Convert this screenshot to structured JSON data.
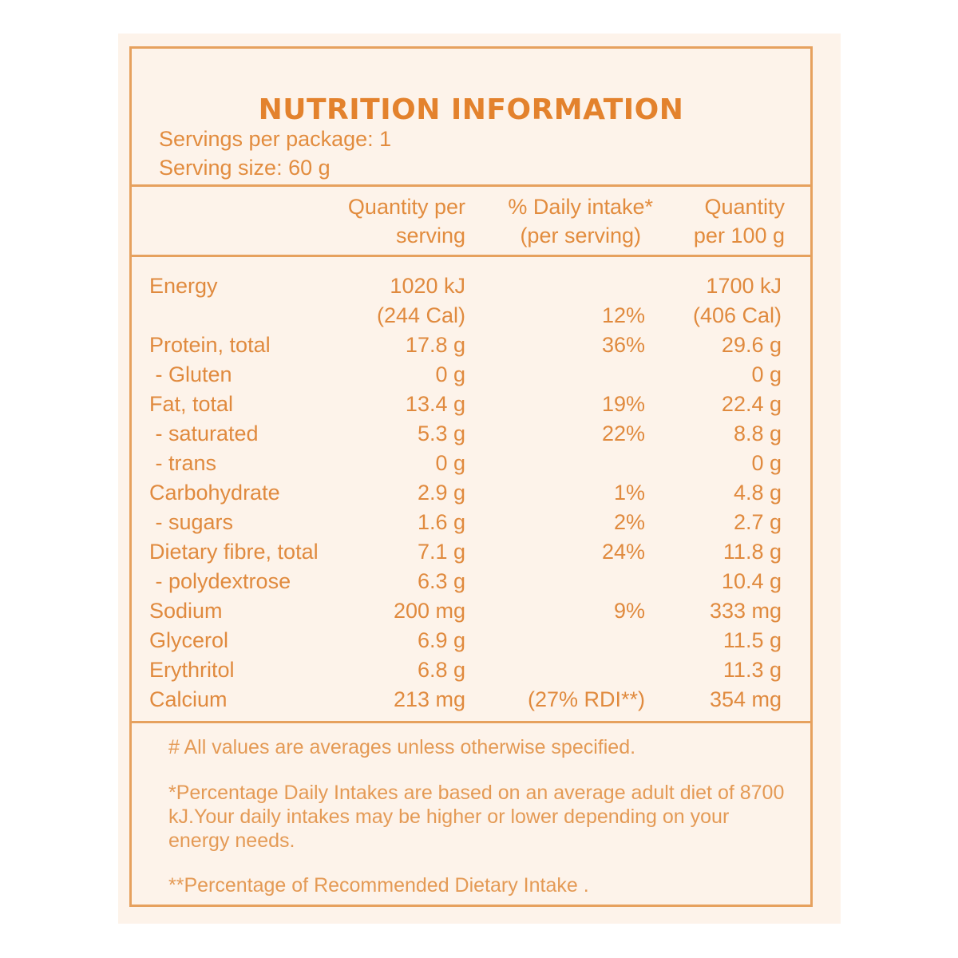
{
  "label": {
    "title": "NUTRITION INFORMATION",
    "servings_per_package": "Servings per package: 1",
    "serving_size": "Serving size: 60 g",
    "columns": {
      "per_serving": [
        "Quantity per",
        "serving"
      ],
      "daily_intake": [
        "% Daily intake*",
        "(per serving)"
      ],
      "per_100g": [
        "Quantity",
        "per 100 g"
      ]
    },
    "rows": [
      {
        "name": "Energy",
        "serving": "1020 kJ",
        "daily": "",
        "per100": "1700 kJ"
      },
      {
        "name": "",
        "serving": "(244 Cal)",
        "daily": "12%",
        "per100": "(406 Cal)"
      },
      {
        "name": "Protein, total",
        "serving": "17.8 g",
        "daily": "36%",
        "per100": "29.6 g"
      },
      {
        "name": " - Gluten",
        "serving": "0 g",
        "daily": "",
        "per100": "0 g"
      },
      {
        "name": "Fat, total",
        "serving": "13.4 g",
        "daily": "19%",
        "per100": "22.4 g"
      },
      {
        "name": " - saturated",
        "serving": "5.3 g",
        "daily": "22%",
        "per100": "8.8 g"
      },
      {
        "name": " - trans",
        "serving": "0 g",
        "daily": "",
        "per100": "0 g"
      },
      {
        "name": "Carbohydrate",
        "serving": "2.9 g",
        "daily": "1%",
        "per100": "4.8 g"
      },
      {
        "name": " - sugars",
        "serving": "1.6 g",
        "daily": "2%",
        "per100": "2.7 g"
      },
      {
        "name": "Dietary fibre, total",
        "serving": "7.1 g",
        "daily": "24%",
        "per100": "11.8 g"
      },
      {
        "name": " - polydextrose",
        "serving": "6.3 g",
        "daily": "",
        "per100": "10.4 g"
      },
      {
        "name": "Sodium",
        "serving": "200 mg",
        "daily": "9%",
        "per100": "333 mg"
      },
      {
        "name": "Glycerol",
        "serving": "6.9 g",
        "daily": "",
        "per100": "11.5 g"
      },
      {
        "name": "Erythritol",
        "serving": "6.8 g",
        "daily": "",
        "per100": "11.3 g"
      },
      {
        "name": "Calcium",
        "serving": "213 mg",
        "daily": "(27% RDI**)",
        "per100": "354 mg"
      }
    ],
    "notes": {
      "averages": "# All values are averages unless otherwise specified.",
      "daily_intake": "*Percentage Daily Intakes are based on an average adult diet of 8700 kJ.Your daily intakes may be higher or lower depending on your energy needs.",
      "rdi": "**Percentage of Recommended Dietary Intake ."
    }
  },
  "colors": {
    "accent": "#e3822d",
    "border": "#e6a15e",
    "background": "#fdf3ea"
  }
}
